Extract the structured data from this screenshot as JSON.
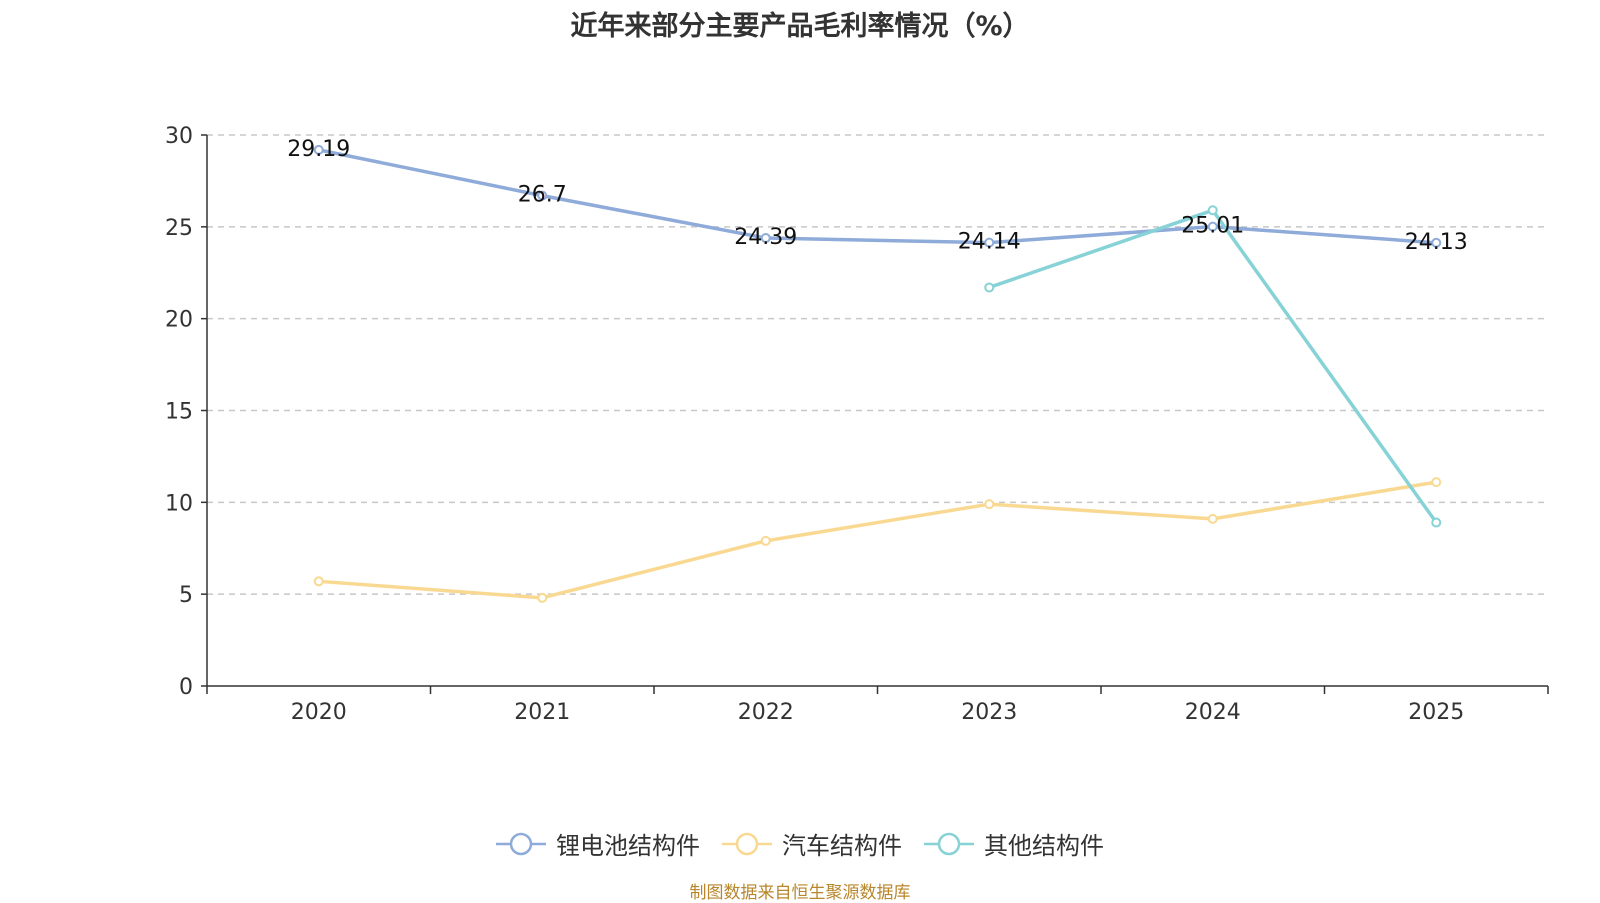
{
  "chart_data": {
    "type": "line",
    "title": "近年来部分主要产品毛利率情况（%）",
    "categories": [
      "2020",
      "2021",
      "2022",
      "2023",
      "2024",
      "2025"
    ],
    "ylim": [
      0,
      30
    ],
    "yticks": [
      0,
      5,
      10,
      15,
      20,
      25,
      30
    ],
    "grid": true,
    "legend_position": "bottom",
    "series": [
      {
        "name": "锂电池结构件",
        "color": "#8fabd9",
        "values": [
          29.19,
          26.7,
          24.39,
          24.14,
          25.01,
          24.13
        ],
        "show_labels": true
      },
      {
        "name": "汽车结构件",
        "color": "#f9d992",
        "values": [
          5.7,
          4.8,
          7.9,
          9.9,
          9.1,
          11.1
        ],
        "show_labels": false
      },
      {
        "name": "其他结构件",
        "color": "#86d2d6",
        "values": [
          null,
          null,
          null,
          21.7,
          25.9,
          8.9
        ],
        "show_labels": false
      }
    ]
  },
  "source": "制图数据来自恒生聚源数据库"
}
